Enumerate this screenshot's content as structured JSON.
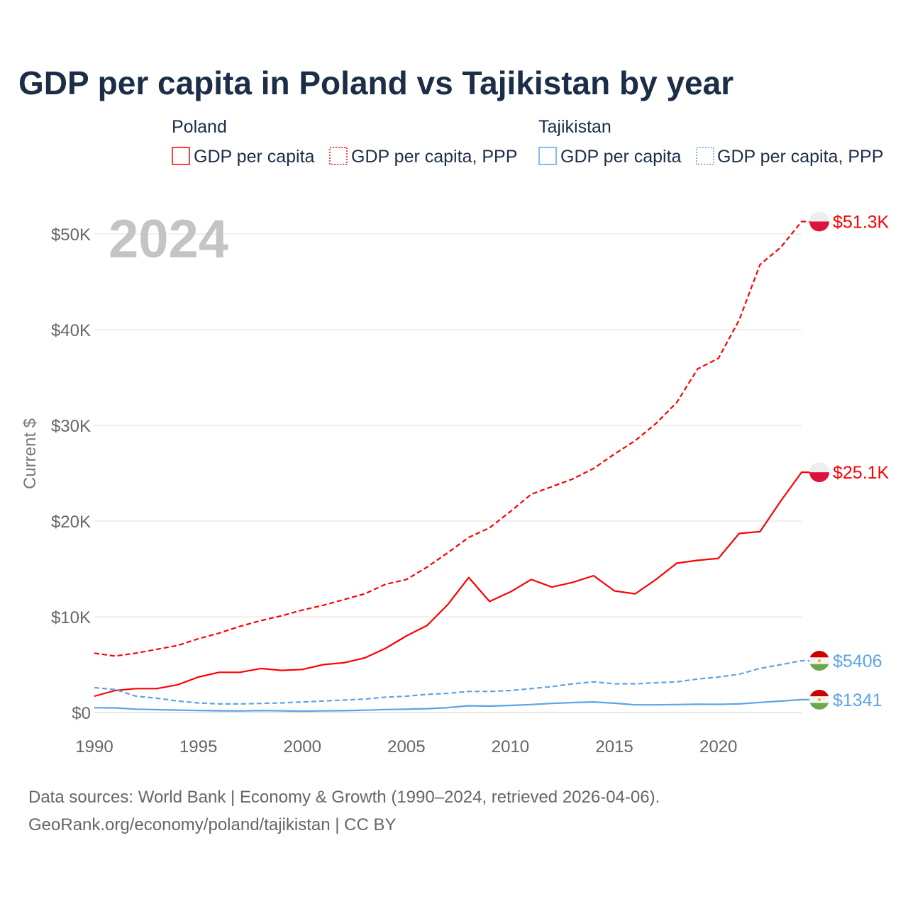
{
  "chart_data": {
    "type": "line",
    "title": "GDP per capita in Poland vs Tajikistan by year",
    "ylabel": "Current $",
    "xlabel": "",
    "ylim": [
      0,
      52000
    ],
    "xlim": [
      1990,
      2024
    ],
    "grid": true,
    "year_watermark": "2024",
    "x_ticks": [
      1990,
      1995,
      2000,
      2005,
      2010,
      2015,
      2020
    ],
    "x_tick_labels": [
      "1990",
      "1995",
      "2000",
      "2005",
      "2010",
      "2015",
      "2020"
    ],
    "y_ticks": [
      0,
      10000,
      20000,
      30000,
      40000,
      50000
    ],
    "y_tick_labels": [
      "$0",
      "$10K",
      "$20K",
      "$30K",
      "$40K",
      "$50K"
    ],
    "legend": {
      "placement": "top",
      "groups": [
        {
          "heading": "Poland",
          "items": [
            "GDP per capita",
            "GDP per capita, PPP"
          ]
        },
        {
          "heading": "Tajikistan",
          "items": [
            "GDP per capita",
            "GDP per capita, PPP"
          ]
        }
      ]
    },
    "x": [
      1990,
      1991,
      1992,
      1993,
      1994,
      1995,
      1996,
      1997,
      1998,
      1999,
      2000,
      2001,
      2002,
      2003,
      2004,
      2005,
      2006,
      2007,
      2008,
      2009,
      2010,
      2011,
      2012,
      2013,
      2014,
      2015,
      2016,
      2017,
      2018,
      2019,
      2020,
      2021,
      2022,
      2023,
      2024
    ],
    "series": [
      {
        "name": "Poland GDP per capita, PPP",
        "color": "#ff0000",
        "dashed": true,
        "end_label": "$51.3K",
        "values": [
          6200,
          5900,
          6200,
          6600,
          7000,
          7700,
          8300,
          9000,
          9600,
          10100,
          10700,
          11200,
          11800,
          12400,
          13400,
          13900,
          15200,
          16700,
          18300,
          19300,
          21000,
          22800,
          23600,
          24400,
          25500,
          27000,
          28400,
          30200,
          32400,
          35900,
          37000,
          41000,
          46800,
          48600,
          51300
        ]
      },
      {
        "name": "Poland GDP per capita",
        "color": "#ff0000",
        "dashed": false,
        "end_label": "$25.1K",
        "values": [
          1700,
          2300,
          2500,
          2500,
          2900,
          3700,
          4200,
          4200,
          4600,
          4400,
          4500,
          5000,
          5200,
          5700,
          6700,
          8000,
          9100,
          11300,
          14100,
          11600,
          12600,
          13900,
          13100,
          13600,
          14300,
          12700,
          12400,
          13900,
          15600,
          15900,
          16100,
          18700,
          18900,
          22100,
          25100
        ]
      },
      {
        "name": "Tajikistan GDP per capita, PPP",
        "color": "#5ba4e6",
        "dashed": true,
        "end_label": "$5406",
        "values": [
          2600,
          2400,
          1700,
          1500,
          1200,
          1000,
          900,
          900,
          950,
          1000,
          1100,
          1200,
          1300,
          1400,
          1600,
          1700,
          1900,
          2000,
          2200,
          2200,
          2300,
          2500,
          2700,
          3000,
          3200,
          3000,
          3000,
          3100,
          3200,
          3500,
          3700,
          4000,
          4600,
          5000,
          5406
        ]
      },
      {
        "name": "Tajikistan GDP per capita",
        "color": "#5ba4e6",
        "dashed": false,
        "end_label": "$1341",
        "values": [
          500,
          480,
          350,
          300,
          250,
          210,
          180,
          160,
          200,
          180,
          140,
          170,
          190,
          240,
          310,
          340,
          400,
          510,
          700,
          670,
          740,
          830,
          950,
          1040,
          1100,
          970,
          800,
          800,
          830,
          870,
          850,
          900,
          1050,
          1190,
          1341
        ]
      }
    ]
  },
  "footer": {
    "line1": "Data sources: World Bank | Economy & Growth (1990–2024, retrieved 2026-04-06).",
    "line2": "GeoRank.org/economy/poland/tajikistan | CC BY"
  }
}
